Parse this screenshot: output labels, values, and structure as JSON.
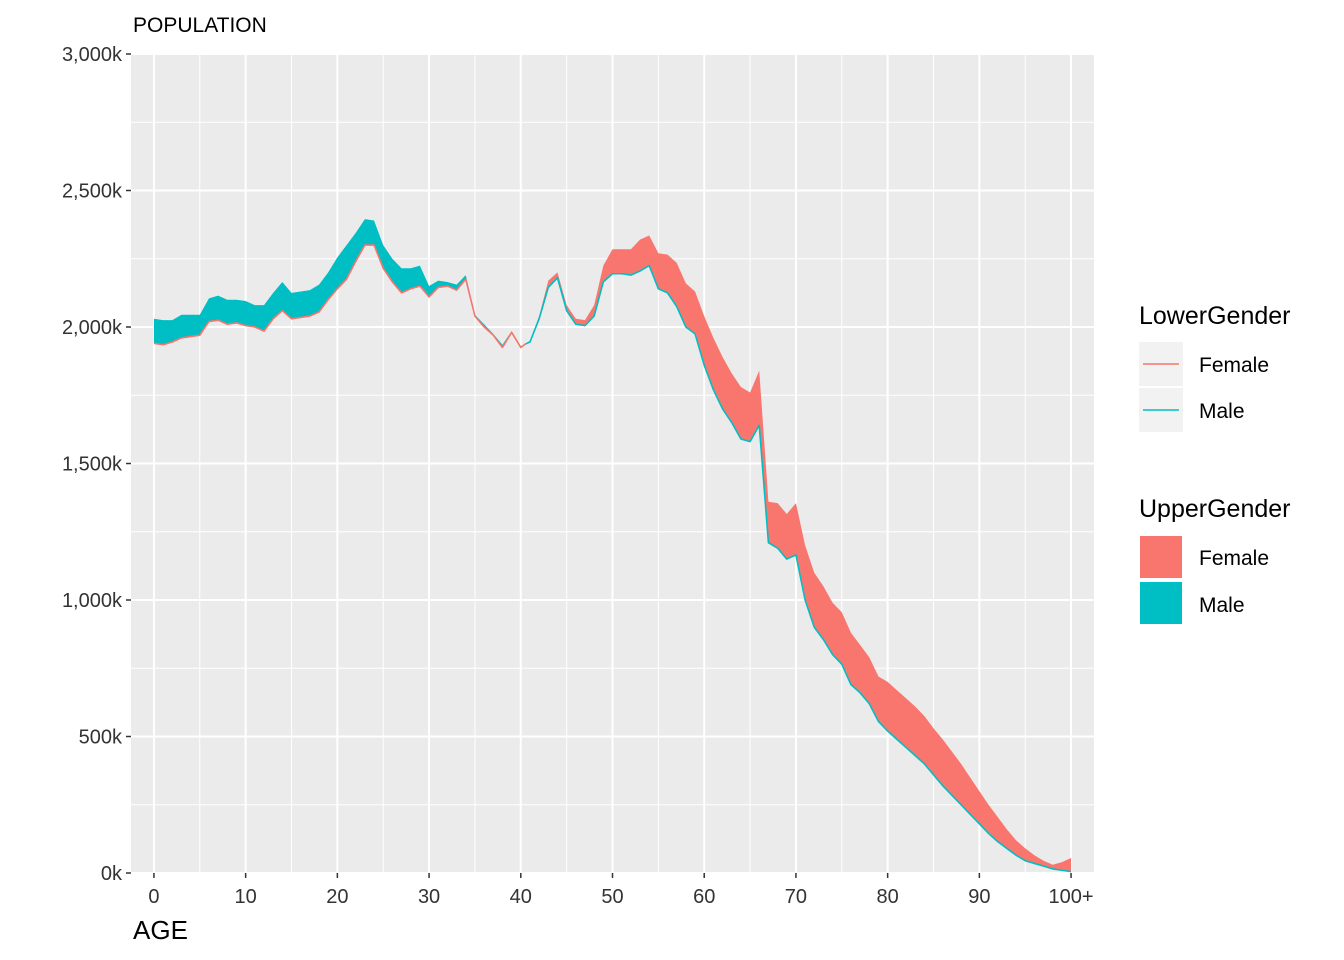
{
  "chart_data": {
    "type": "area",
    "title": "POPULATION",
    "xlabel": "AGE",
    "ylabel": "",
    "xlim": [
      -2.5,
      102.5
    ],
    "ylim": [
      0,
      3000
    ],
    "x_ticks": [
      0,
      10,
      20,
      30,
      40,
      50,
      60,
      70,
      80,
      90,
      100
    ],
    "x_tick_labels": [
      "0",
      "10",
      "20",
      "30",
      "40",
      "50",
      "60",
      "70",
      "80",
      "90",
      "100+"
    ],
    "y_ticks": [
      0,
      500,
      1000,
      1500,
      2000,
      2500,
      3000
    ],
    "y_tick_labels": [
      "0k",
      "500k",
      "1,000k",
      "1,500k",
      "2,000k",
      "2,500k",
      "3,000k"
    ],
    "grid": true,
    "legend_position": "right",
    "colors": {
      "Female": "#F8766D",
      "Male": "#00BFC4",
      "panel": "#EBEBEB",
      "grid": "#FFFFFF"
    },
    "x": [
      0,
      1,
      2,
      3,
      4,
      5,
      6,
      7,
      8,
      9,
      10,
      11,
      12,
      13,
      14,
      15,
      16,
      17,
      18,
      19,
      20,
      21,
      22,
      23,
      24,
      25,
      26,
      27,
      28,
      29,
      30,
      31,
      32,
      33,
      34,
      35,
      36,
      37,
      38,
      39,
      40,
      41,
      42,
      43,
      44,
      45,
      46,
      47,
      48,
      49,
      50,
      51,
      52,
      53,
      54,
      55,
      56,
      57,
      58,
      59,
      60,
      61,
      62,
      63,
      64,
      65,
      66,
      67,
      68,
      69,
      70,
      71,
      72,
      73,
      74,
      75,
      76,
      77,
      78,
      79,
      80,
      81,
      82,
      83,
      84,
      85,
      86,
      87,
      88,
      89,
      90,
      91,
      92,
      93,
      94,
      95,
      96,
      97,
      98,
      99,
      100
    ],
    "series": [
      {
        "name": "Male",
        "values": [
          2030,
          2025,
          2025,
          2045,
          2045,
          2045,
          2105,
          2115,
          2100,
          2100,
          2095,
          2080,
          2080,
          2125,
          2165,
          2125,
          2130,
          2135,
          2155,
          2200,
          2255,
          2300,
          2345,
          2395,
          2390,
          2300,
          2250,
          2215,
          2215,
          2225,
          2150,
          2170,
          2165,
          2155,
          2190,
          2045,
          2010,
          1975,
          1935,
          1985,
          1930,
          1945,
          2030,
          2145,
          2180,
          2060,
          2010,
          2005,
          2040,
          2165,
          2195,
          2195,
          2190,
          2205,
          2225,
          2140,
          2125,
          2075,
          2000,
          1975,
          1860,
          1770,
          1700,
          1650,
          1590,
          1580,
          1640,
          1210,
          1190,
          1150,
          1165,
          1000,
          900,
          855,
          800,
          765,
          690,
          660,
          620,
          555,
          520,
          490,
          460,
          430,
          400,
          360,
          320,
          285,
          250,
          215,
          180,
          145,
          115,
          90,
          65,
          45,
          35,
          25,
          15,
          10,
          5
        ]
      },
      {
        "name": "Female",
        "values": [
          1940,
          1935,
          1945,
          1960,
          1965,
          1970,
          2020,
          2025,
          2010,
          2015,
          2005,
          2000,
          1985,
          2030,
          2060,
          2030,
          2035,
          2040,
          2055,
          2100,
          2140,
          2175,
          2240,
          2300,
          2300,
          2215,
          2165,
          2125,
          2140,
          2150,
          2110,
          2145,
          2150,
          2135,
          2175,
          2040,
          2000,
          1970,
          1925,
          1980,
          1925,
          1950,
          2040,
          2170,
          2200,
          2080,
          2030,
          2025,
          2080,
          2225,
          2285,
          2285,
          2285,
          2320,
          2335,
          2270,
          2265,
          2235,
          2160,
          2130,
          2040,
          1960,
          1890,
          1830,
          1780,
          1760,
          1840,
          1360,
          1355,
          1315,
          1355,
          1200,
          1100,
          1050,
          990,
          955,
          880,
          835,
          790,
          720,
          700,
          670,
          640,
          610,
          575,
          530,
          490,
          445,
          400,
          350,
          300,
          250,
          205,
          160,
          120,
          90,
          65,
          45,
          30,
          40,
          55
        ]
      }
    ]
  },
  "legend": {
    "lower_title": "LowerGender",
    "lower_items": [
      {
        "label": "Female"
      },
      {
        "label": "Male"
      }
    ],
    "upper_title": "UpperGender",
    "upper_items": [
      {
        "label": "Female"
      },
      {
        "label": "Male"
      }
    ]
  }
}
